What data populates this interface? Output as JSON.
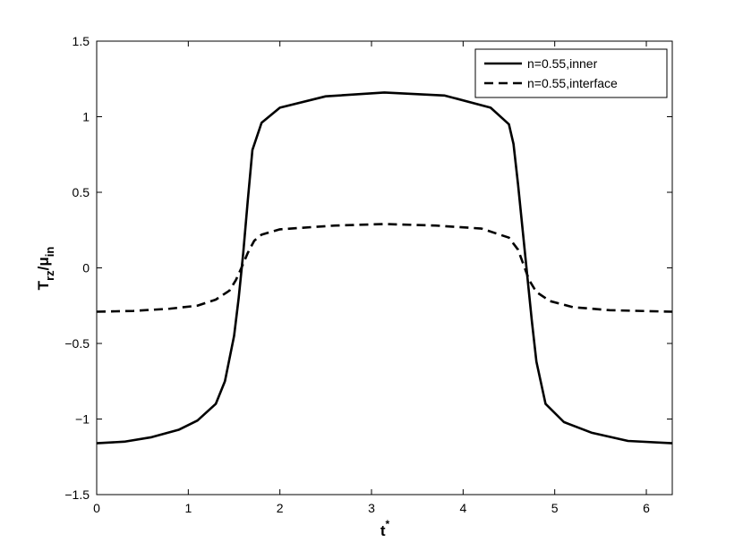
{
  "chart_data": {
    "type": "line",
    "title": "",
    "xlabel": {
      "main": "t",
      "sup": "*"
    },
    "ylabel": {
      "main": "T",
      "sub1": "rz",
      "mid": "/μ",
      "sub2": "in"
    },
    "xlim": [
      0,
      6.2832
    ],
    "ylim": [
      -1.5,
      1.5
    ],
    "xticks": [
      0,
      1,
      2,
      3,
      4,
      5,
      6
    ],
    "xtick_labels": [
      "0",
      "1",
      "2",
      "3",
      "4",
      "5",
      "6"
    ],
    "yticks": [
      -1.5,
      -1,
      -0.5,
      0,
      0.5,
      1,
      1.5
    ],
    "ytick_labels": [
      "−1.5",
      "−1",
      "−0.5",
      "0",
      "0.5",
      "1",
      "1.5"
    ],
    "grid": false,
    "legend_position": "top-right",
    "series": [
      {
        "name": "n=0.55,inner",
        "style": "solid",
        "color": "#000000",
        "x": [
          0,
          0.3,
          0.6,
          0.9,
          1.1,
          1.3,
          1.4,
          1.5,
          1.55,
          1.6,
          1.65,
          1.7,
          1.8,
          2.0,
          2.5,
          3.14,
          3.8,
          4.3,
          4.5,
          4.55,
          4.6,
          4.65,
          4.7,
          4.75,
          4.8,
          4.9,
          5.1,
          5.4,
          5.8,
          6.2832
        ],
        "y": [
          -1.16,
          -1.15,
          -1.12,
          -1.07,
          -1.01,
          -0.9,
          -0.75,
          -0.45,
          -0.2,
          0.1,
          0.45,
          0.78,
          0.96,
          1.06,
          1.135,
          1.16,
          1.14,
          1.06,
          0.95,
          0.82,
          0.55,
          0.25,
          -0.05,
          -0.35,
          -0.62,
          -0.9,
          -1.02,
          -1.09,
          -1.145,
          -1.16
        ]
      },
      {
        "name": "n=0.55,interface",
        "style": "dashed",
        "color": "#000000",
        "x": [
          0,
          0.4,
          0.8,
          1.1,
          1.3,
          1.45,
          1.52,
          1.58,
          1.65,
          1.72,
          1.8,
          2.0,
          2.6,
          3.14,
          3.7,
          4.2,
          4.5,
          4.6,
          4.66,
          4.72,
          4.8,
          4.95,
          5.2,
          5.6,
          6.2832
        ],
        "y": [
          -0.29,
          -0.285,
          -0.27,
          -0.25,
          -0.21,
          -0.15,
          -0.08,
          0.0,
          0.1,
          0.18,
          0.22,
          0.255,
          0.28,
          0.29,
          0.28,
          0.26,
          0.2,
          0.12,
          0.02,
          -0.08,
          -0.16,
          -0.22,
          -0.26,
          -0.28,
          -0.29
        ]
      }
    ]
  }
}
